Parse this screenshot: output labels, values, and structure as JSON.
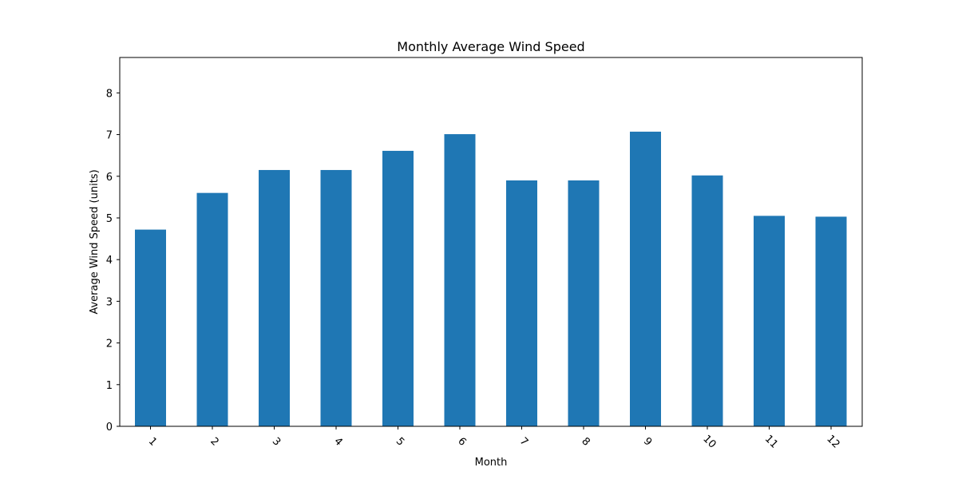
{
  "chart_data": {
    "type": "bar",
    "title": "Monthly Average Wind Speed",
    "xlabel": "Month",
    "ylabel": "Average Wind Speed (units)",
    "categories": [
      "1",
      "2",
      "3",
      "4",
      "5",
      "6",
      "7",
      "8",
      "9",
      "10",
      "11",
      "12"
    ],
    "values": [
      4.72,
      5.6,
      6.15,
      6.15,
      6.61,
      7.01,
      5.9,
      5.9,
      7.07,
      6.02,
      5.05,
      5.03
    ],
    "ylim": [
      0,
      8.85
    ],
    "yticks": [
      "0",
      "1",
      "2",
      "3",
      "4",
      "5",
      "6",
      "7",
      "8"
    ],
    "grid": false,
    "legend": "none",
    "xtick_rotation": "45 degrees",
    "bar_color": "#1f77b4"
  }
}
